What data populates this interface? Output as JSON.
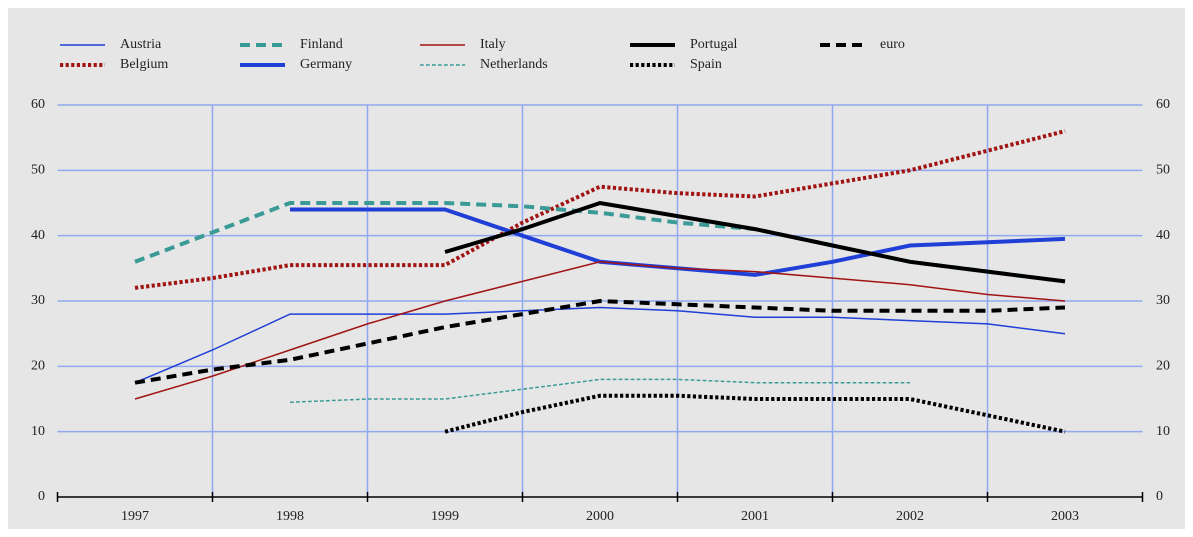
{
  "chart_data": {
    "type": "line",
    "x": [
      1997,
      1997.5,
      1998,
      1998.5,
      1999,
      1999.5,
      2000,
      2000.5,
      2001,
      2001.5,
      2002,
      2002.5,
      2003
    ],
    "xlim": [
      1996.5,
      2003.5
    ],
    "xticks": [
      1997,
      1998,
      1999,
      2000,
      2001,
      2002,
      2003
    ],
    "xgrid": [
      1996.5,
      1997.5,
      1998.5,
      1999.5,
      2000.5,
      2001.5,
      2002.5,
      2003.5
    ],
    "ylim": [
      0,
      60
    ],
    "yticks": [
      0,
      10,
      20,
      30,
      40,
      50,
      60
    ],
    "grid": true,
    "legend": "top",
    "series": [
      {
        "name": "Austria",
        "color": "#1f3fd6",
        "style": "solid",
        "width": 1.5,
        "values": [
          17.5,
          22.5,
          28,
          28,
          28,
          28.5,
          29,
          28.5,
          27.5,
          27.5,
          27,
          26.5,
          25
        ]
      },
      {
        "name": "Belgium",
        "color": "#a11414",
        "style": "dotted",
        "width": 4,
        "values": [
          32,
          33.5,
          35.5,
          35.5,
          35.5,
          42,
          47.5,
          46.5,
          46,
          48,
          50,
          53,
          56
        ]
      },
      {
        "name": "Finland",
        "color": "#3a9a95",
        "style": "dashed",
        "width": 4,
        "values": [
          36,
          40.5,
          45,
          45,
          45,
          44.5,
          43.5,
          42,
          41,
          38.5,
          36,
          34.5,
          33
        ]
      },
      {
        "name": "Germany",
        "color": "#1f3fd6",
        "style": "solid",
        "width": 4,
        "values": [
          null,
          null,
          44,
          44,
          44,
          40,
          36,
          35,
          34,
          36,
          38.5,
          39,
          39.5
        ]
      },
      {
        "name": "Italy",
        "color": "#a11414",
        "style": "solid",
        "width": 1.5,
        "values": [
          15,
          18.5,
          22.5,
          26.5,
          30,
          33,
          36,
          35,
          34.5,
          33.5,
          32.5,
          31,
          30
        ]
      },
      {
        "name": "Netherlands",
        "color": "#3a9a95",
        "style": "dashed",
        "width": 1.5,
        "values": [
          null,
          null,
          14.5,
          15,
          15,
          16.5,
          18,
          18,
          17.5,
          17.5,
          17.5,
          null,
          null
        ]
      },
      {
        "name": "Portugal",
        "color": "#000000",
        "style": "solid",
        "width": 4,
        "values": [
          null,
          null,
          null,
          null,
          37.5,
          41,
          45,
          43,
          41,
          38.5,
          36,
          34.5,
          33
        ]
      },
      {
        "name": "Spain",
        "color": "#000000",
        "style": "dotted",
        "width": 4,
        "values": [
          null,
          null,
          null,
          null,
          10,
          13,
          15.5,
          15.5,
          15,
          15,
          15,
          12.5,
          10
        ]
      },
      {
        "name": "euro",
        "color": "#000000",
        "style": "dashed",
        "width": 4,
        "values": [
          17.5,
          19.5,
          21,
          23.5,
          26,
          28,
          30,
          29.5,
          29,
          28.5,
          28.5,
          28.5,
          29
        ]
      }
    ]
  }
}
